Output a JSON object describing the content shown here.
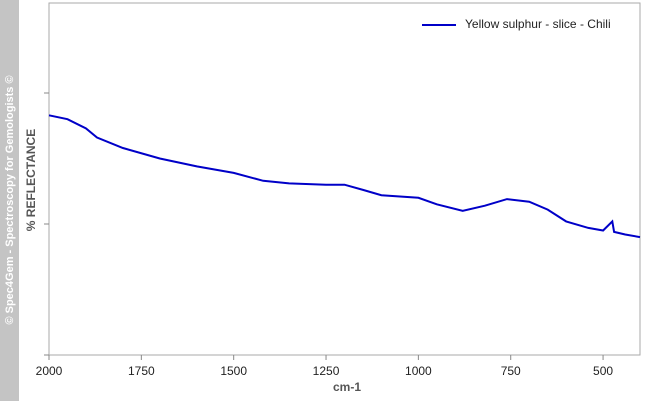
{
  "chart_data": {
    "type": "line",
    "watermark": "© Spec4Gem - Spectroscopy for Gemologists ©",
    "x_label": "cm-1",
    "y_label": "%  REFLECTANCE",
    "x": [
      2000,
      1950,
      1900,
      1870,
      1800,
      1700,
      1600,
      1500,
      1420,
      1350,
      1250,
      1200,
      1150,
      1100,
      1000,
      950,
      880,
      820,
      760,
      700,
      650,
      600,
      540,
      500,
      475,
      470,
      440,
      400
    ],
    "series": [
      {
        "name": "Yellow sulphur - slice - Chili",
        "color": "#0000c8",
        "values": [
          1.83,
          1.8,
          1.73,
          1.66,
          1.58,
          1.5,
          1.44,
          1.39,
          1.33,
          1.31,
          1.3,
          1.3,
          1.26,
          1.22,
          1.2,
          1.15,
          1.1,
          1.14,
          1.19,
          1.17,
          1.11,
          1.02,
          0.97,
          0.95,
          1.02,
          0.94,
          0.92,
          0.9
        ]
      }
    ],
    "xlim": [
      2000,
      400
    ],
    "xticks": [
      2000,
      1750,
      1500,
      1250,
      1000,
      750,
      500
    ],
    "ylim": [
      0,
      2.687
    ],
    "yticks": [
      0,
      1,
      2
    ],
    "legend": "top-right"
  }
}
